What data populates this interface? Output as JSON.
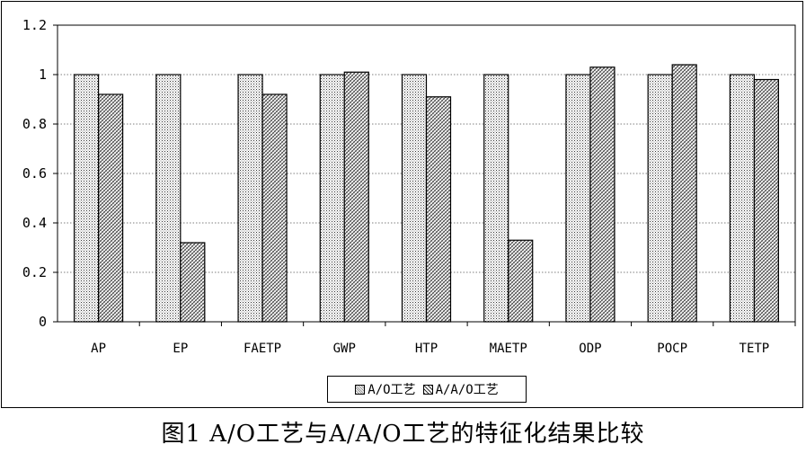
{
  "chart_data": {
    "type": "bar",
    "categories": [
      "AP",
      "EP",
      "FAETP",
      "GWP",
      "HTP",
      "MAETP",
      "ODP",
      "POCP",
      "TETP"
    ],
    "series": [
      {
        "name": "A/O工艺",
        "values": [
          1,
          1,
          1,
          1,
          1,
          1,
          1,
          1,
          1
        ]
      },
      {
        "name": "A/A/O工艺",
        "values": [
          0.92,
          0.32,
          0.92,
          1.01,
          0.91,
          0.33,
          1.03,
          1.04,
          0.98
        ]
      }
    ],
    "yticks": [
      "0",
      "0.2",
      "0.4",
      "0.6",
      "0.8",
      "1",
      "1.2"
    ],
    "ylim": [
      0,
      1.2
    ],
    "grid": true,
    "legend_position": "bottom-center",
    "title": "",
    "xlabel": "",
    "ylabel": ""
  },
  "caption": "图1 A/O工艺与A/A/O工艺的特征化结果比较"
}
